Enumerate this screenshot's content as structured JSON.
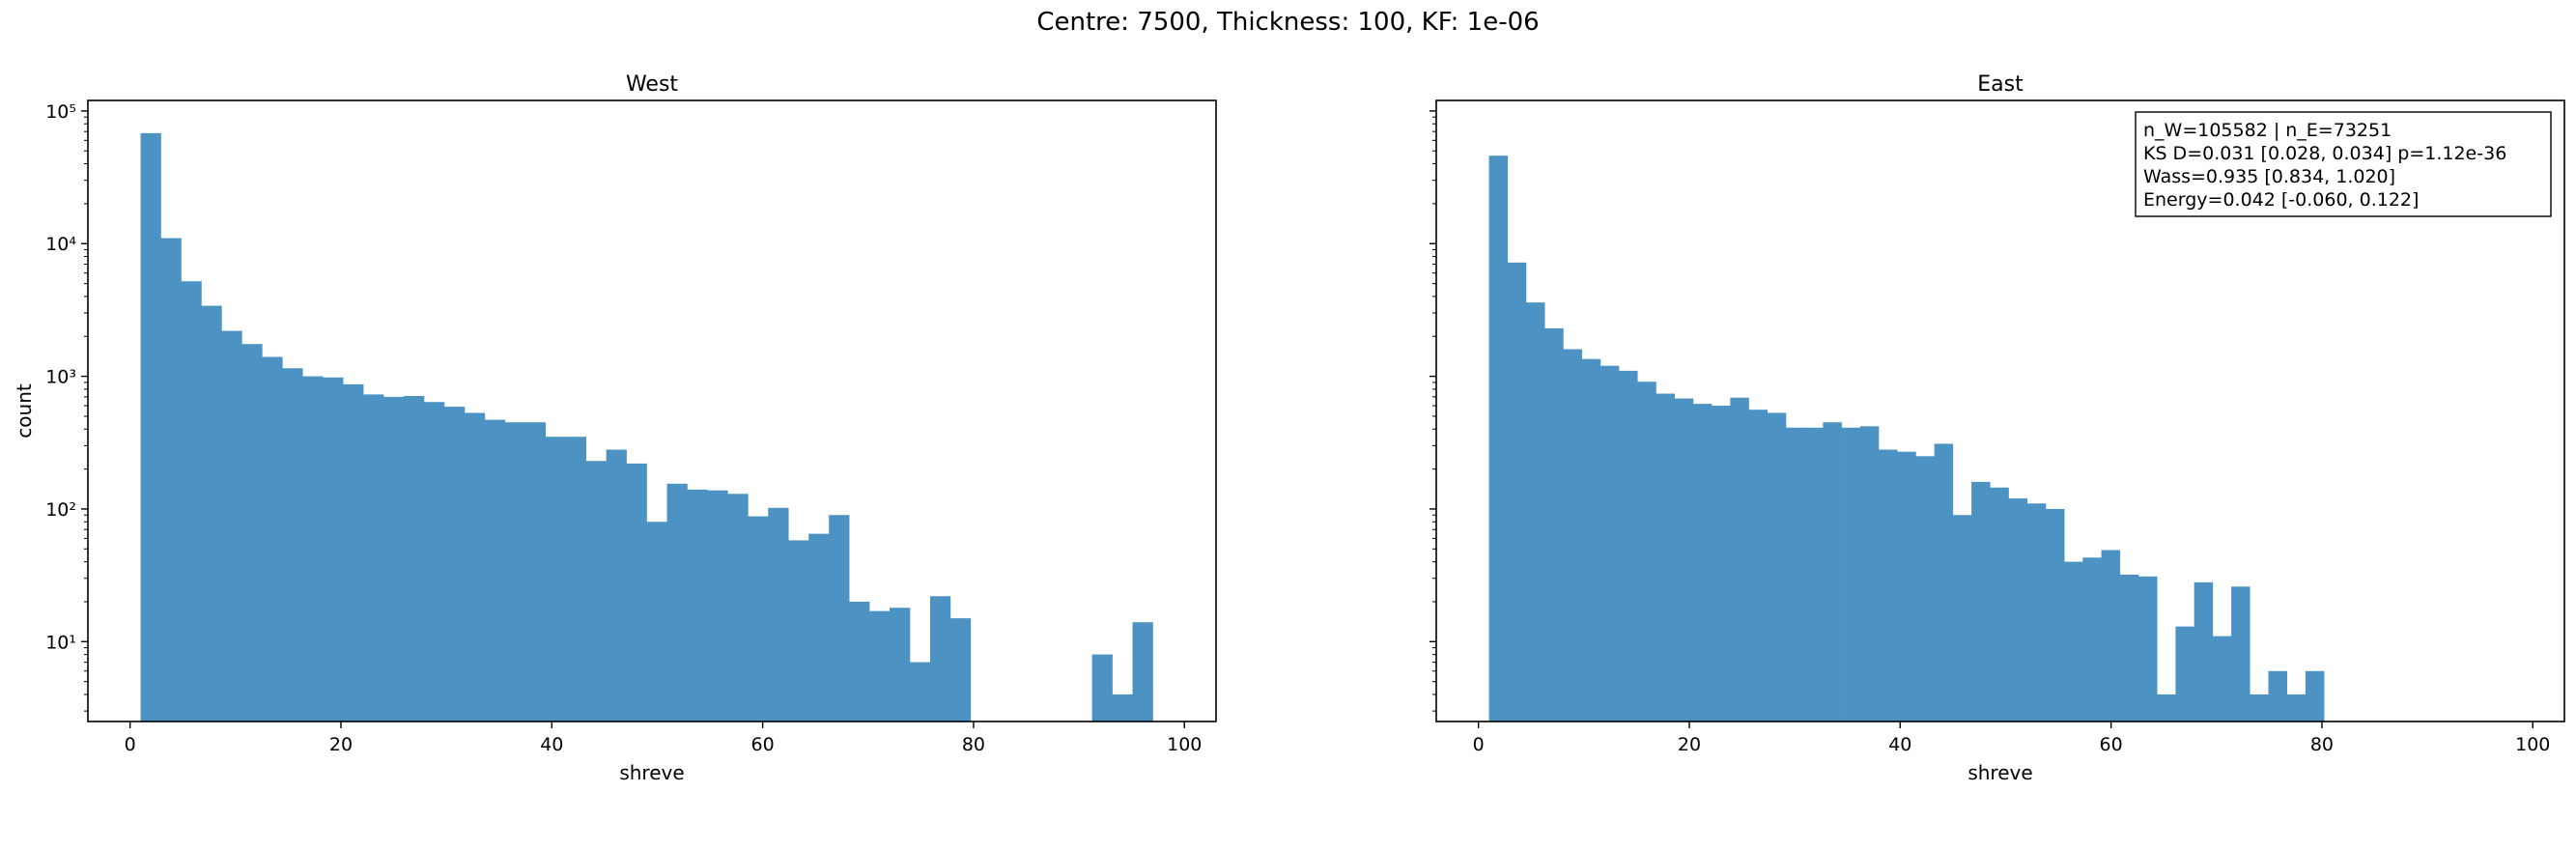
{
  "figure": {
    "suptitle": "Centre: 7500, Thickness: 100, KF: 1e-06"
  },
  "chart_data": [
    {
      "type": "bar",
      "title": "West",
      "xlabel": "shreve",
      "ylabel": "count",
      "yscale": "log",
      "xlim": [
        -4,
        103
      ],
      "ylim": [
        2.5,
        120000
      ],
      "xticks": [
        0,
        20,
        40,
        60,
        80,
        100
      ],
      "yticks": [
        10,
        100,
        1000,
        10000,
        100000
      ],
      "ytick_labels": [
        "10¹",
        "10²",
        "10³",
        "10⁴",
        "10⁵"
      ],
      "bin_edges_start": 1,
      "bin_width": 1.92,
      "bin_count": 50,
      "values": [
        68000,
        11000,
        5200,
        3400,
        2200,
        1750,
        1400,
        1150,
        1000,
        980,
        870,
        730,
        700,
        710,
        640,
        590,
        530,
        470,
        450,
        450,
        350,
        350,
        230,
        280,
        220,
        80,
        155,
        140,
        138,
        130,
        88,
        102,
        58,
        65,
        90,
        20,
        17,
        18,
        7,
        22,
        15,
        0,
        0,
        0,
        0,
        0,
        0,
        8,
        4,
        14
      ],
      "color": "#4c93c3",
      "grid": false
    },
    {
      "type": "bar",
      "title": "East",
      "xlabel": "shreve",
      "ylabel": "",
      "yscale": "log",
      "xlim": [
        -4,
        103
      ],
      "ylim": [
        2.5,
        120000
      ],
      "xticks": [
        0,
        20,
        40,
        60,
        80,
        100
      ],
      "yticks": [
        10,
        100,
        1000,
        10000,
        100000
      ],
      "ytick_labels": [],
      "bin_edges_start": 1,
      "bin_width": 1.76,
      "bin_count": 50,
      "values": [
        46000,
        7200,
        3600,
        2300,
        1600,
        1350,
        1200,
        1100,
        910,
        740,
        680,
        620,
        600,
        690,
        560,
        530,
        410,
        410,
        450,
        410,
        420,
        280,
        270,
        250,
        310,
        90,
        160,
        145,
        120,
        110,
        100,
        40,
        43,
        49,
        32,
        31,
        4,
        13,
        28,
        11,
        26,
        4,
        6,
        4,
        6,
        0,
        0,
        0,
        0,
        0
      ],
      "color": "#4c93c3",
      "grid": false,
      "annotation": {
        "lines": [
          "n_W=105582 | n_E=73251",
          "KS D=0.031 [0.028, 0.034]  p=1.12e-36",
          "Wass=0.935 [0.834, 1.020]",
          "Energy=0.042 [-0.060, 0.122]"
        ],
        "placement": "top-right"
      }
    }
  ]
}
